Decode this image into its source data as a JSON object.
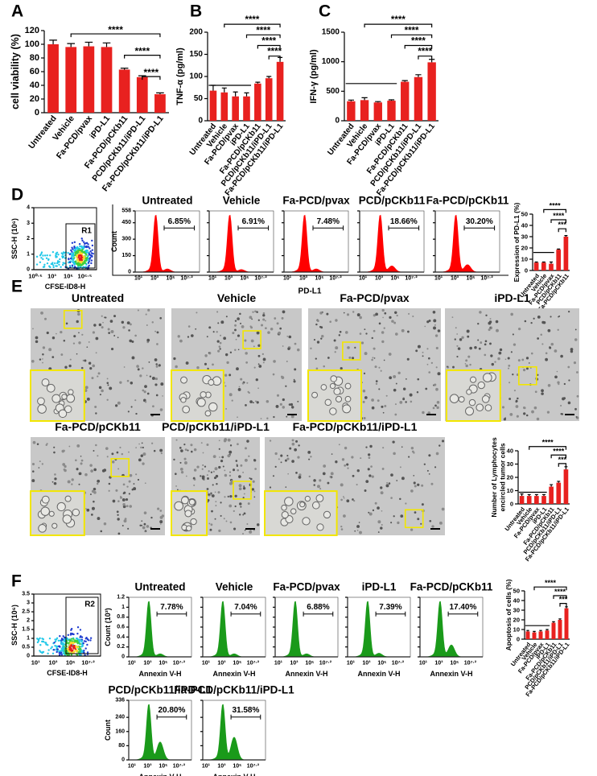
{
  "panels": [
    {
      "letter": "A",
      "bar": {
        "type": "bar",
        "ylabel": "cell viability (%)",
        "color": "#e8211f",
        "categories": [
          "Untreated",
          "Vehicle",
          "Fa-PCD/pvax",
          "iPD-L1",
          "Fa-PCD/pCKb11",
          "PCD/pCKb11/iPD-L1",
          "Fa-PCD/pCKb11/iPD-L1"
        ],
        "values": [
          100,
          96,
          97,
          96,
          63,
          52,
          27
        ],
        "errors": [
          6,
          5,
          6,
          6,
          2,
          2,
          2
        ],
        "ylim": [
          0,
          120
        ],
        "yticks": [
          0,
          20,
          40,
          60,
          80,
          100,
          120
        ],
        "significance": [
          "****",
          "****",
          "****"
        ]
      }
    },
    {
      "letter": "B",
      "bar": {
        "type": "bar",
        "ylabel": "TNF-α (pg/ml)",
        "color": "#e8211f",
        "categories": [
          "Untreated",
          "Vehicle",
          "Fa-PCD/pvax",
          "iPD-L1",
          "Fa-PCD/pCKb11",
          "PCD/pCKb11/iPD-L1",
          "Fa-PCD/pCKb11/iPD-L1"
        ],
        "values": [
          68,
          64,
          55,
          55,
          84,
          96,
          133
        ],
        "errors": [
          12,
          10,
          10,
          8,
          3,
          4,
          10
        ],
        "ylim": [
          0,
          200
        ],
        "yticks": [
          0,
          50,
          100,
          150,
          200
        ],
        "significance": [
          "****",
          "****",
          "****",
          "****"
        ]
      }
    },
    {
      "letter": "C",
      "bar": {
        "type": "bar",
        "ylabel": "IFN-γ (pg/ml)",
        "color": "#e8211f",
        "categories": [
          "Untreated",
          "Vehicle",
          "Fa-PCD/pvax",
          "iPD-L1",
          "Fa-PCD/pCKb11",
          "PCD/pCKb11/iPD-L1",
          "Fa-PCD/pCKb11/iPD-L1"
        ],
        "values": [
          330,
          350,
          310,
          340,
          660,
          740,
          990
        ],
        "errors": [
          20,
          40,
          15,
          15,
          20,
          40,
          50
        ],
        "ylim": [
          0,
          1500
        ],
        "yticks": [
          0,
          500,
          1000,
          1500
        ],
        "significance": [
          "****",
          "****",
          "****",
          "****"
        ]
      }
    },
    {
      "letter": "D",
      "scatter": {
        "ylabel": "SSC-H (10⁶)",
        "xlabel": "CFSE-ID8-H",
        "gate": "R1",
        "ylim": [
          0,
          4
        ],
        "yticks": [
          0,
          1,
          2,
          3,
          4
        ],
        "xticks": [
          "10⁰·⁵",
          "10³",
          "10⁵",
          "10⁶·⁵"
        ]
      },
      "histograms": [
        {
          "ylabel": "Count",
          "xlabel": "PD-L1",
          "color": "#ff0000",
          "ylim": [
            0,
            558
          ],
          "yticks": [
            0,
            150,
            300,
            450,
            558
          ],
          "xticks": [
            "10¹",
            "10³",
            "10⁵",
            "10⁷·²"
          ],
          "items": [
            {
              "title": "Untreated",
              "percent": "6.85%"
            },
            {
              "title": "Vehicle",
              "percent": "6.91%"
            },
            {
              "title": "Fa-PCD/pvax",
              "percent": "7.48%"
            },
            {
              "title": "PCD/pCKb11",
              "percent": "18.66%"
            },
            {
              "title": "Fa-PCD/pCKb11",
              "percent": "30.20%"
            }
          ]
        }
      ],
      "bar": {
        "type": "bar",
        "ylabel": "Expression of PD-L1 (%)",
        "color": "#e8211f",
        "categories": [
          "Untreated",
          "Vehicle",
          "Fa-PCD/pvax",
          "PCD/pCKb11",
          "Fa-PCD/pCKb11"
        ],
        "values": [
          7,
          7,
          6,
          18.5,
          30
        ],
        "errors": [
          0.5,
          0.5,
          1.5,
          0.5,
          1
        ],
        "ylim": [
          0,
          50
        ],
        "yticks": [
          0,
          10,
          20,
          30,
          40,
          50
        ],
        "significance": [
          "****",
          "****",
          "***"
        ]
      }
    },
    {
      "letter": "E",
      "images": [
        "Untreated",
        "Vehicle",
        "Fa-PCD/pvax",
        "iPD-L1",
        "Fa-PCD/pCKb11",
        "PCD/pCKb11/iPD-L1",
        "Fa-PCD/pCKb11/iPD-L1"
      ],
      "bar": {
        "type": "bar",
        "ylabel": [
          "Number of Lymphocytes",
          "encircled tumor cells"
        ],
        "color": "#e8211f",
        "categories": [
          "Untreated",
          "Vehicle",
          "Fa-PCD/pvax",
          "iPD-L1",
          "Fa-PCD/pCKb11",
          "PCD/pCKb11/iPD-L1",
          "Fa-PCD/pCKb11/iPD-L1"
        ],
        "values": [
          6,
          6,
          6,
          6,
          13,
          16,
          26
        ],
        "errors": [
          1.5,
          1,
          1,
          1,
          1.5,
          1,
          2
        ],
        "ylim": [
          0,
          40
        ],
        "yticks": [
          0,
          10,
          20,
          30,
          40
        ],
        "significance": [
          "****",
          "****",
          "***"
        ]
      }
    },
    {
      "letter": "F",
      "scatter": {
        "ylabel": "SSC-H (10⁶)",
        "xlabel": "CFSE-ID8-H",
        "gate": "R2",
        "ylim": [
          0,
          3.5
        ],
        "yticks": [
          0,
          0.5,
          1,
          1.5,
          2,
          2.5,
          3,
          3.5
        ],
        "xticks": [
          "10¹",
          "10³",
          "10⁵",
          "10⁷·²"
        ]
      },
      "histograms": [
        {
          "ylabel": "Count (10³)",
          "xlabel": "Annexin V-H",
          "color": "#1a9a1a",
          "ylim": [
            0,
            1.2
          ],
          "yticks": [
            0,
            0.2,
            0.4,
            0.6,
            0.8,
            1,
            1.2
          ],
          "xticks": [
            "10¹",
            "10³",
            "10⁵",
            "10⁷·²"
          ],
          "items": [
            {
              "title": "Untreated",
              "percent": "7.78%"
            },
            {
              "title": "Vehicle",
              "percent": "7.04%"
            },
            {
              "title": "Fa-PCD/pvax",
              "percent": "6.88%"
            },
            {
              "title": "iPD-L1",
              "percent": "7.39%"
            },
            {
              "title": "Fa-PCD/pCKb11",
              "percent": "17.40%"
            }
          ]
        },
        {
          "ylabel": "Count",
          "xlabel": "Annexin V-H",
          "color": "#1a9a1a",
          "ylim": [
            0,
            336
          ],
          "yticks": [
            0,
            80,
            160,
            240,
            336
          ],
          "xticks": [
            "10¹",
            "10³",
            "10⁵",
            "10⁷·²"
          ],
          "items": [
            {
              "title": "PCD/pCKb11/iPD-L1",
              "percent": "20.80%"
            },
            {
              "title": "Fa-PCD/pCKb11/iPD-L1",
              "percent": "31.58%"
            }
          ]
        }
      ],
      "bar": {
        "type": "bar",
        "ylabel": "Apoptosis of cells (%)",
        "color": "#e8211f",
        "categories": [
          "Untreated",
          "Vehicle",
          "Fa-PCD/pvax",
          "iPD-L1",
          "Fa-PCD/pCKb11",
          "PCD/pCKb11/iPD-L1",
          "Fa-PCD/pCKb11/iPD-L1"
        ],
        "values": [
          8,
          7,
          8,
          9,
          17,
          20,
          32
        ],
        "errors": [
          1,
          1,
          1,
          1,
          1,
          1,
          1.5
        ],
        "ylim": [
          0,
          50
        ],
        "yticks": [
          0,
          10,
          20,
          30,
          40,
          50
        ],
        "significance": [
          "****",
          "****",
          "***"
        ]
      }
    }
  ]
}
